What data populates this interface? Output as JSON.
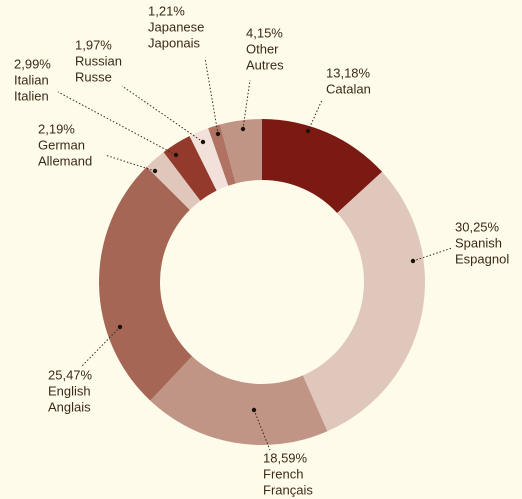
{
  "chart_data": {
    "type": "donut",
    "categories": [
      [
        "Catalan"
      ],
      [
        "Spanish",
        "Espagnol"
      ],
      [
        "French",
        "Français"
      ],
      [
        "English",
        "Anglais"
      ],
      [
        "German",
        "Allemand"
      ],
      [
        "Italian",
        "Italien"
      ],
      [
        "Russian",
        "Russe"
      ],
      [
        "Japanese",
        "Japonais"
      ],
      [
        "Other",
        "Autres"
      ]
    ],
    "values": [
      13.18,
      30.25,
      18.59,
      25.47,
      2.19,
      2.99,
      1.97,
      1.21,
      4.15
    ],
    "value_labels": [
      "13,18%",
      "30,25%",
      "18,59%",
      "25,47%",
      "2,19%",
      "2,99%",
      "1,97%",
      "1,21%",
      "4,15%"
    ],
    "colors": [
      "#7b1a12",
      "#e0c7bc",
      "#c09586",
      "#a66655",
      "#e0c7bc",
      "#943a2d",
      "#f2e1db",
      "#b07262",
      "#c09586"
    ]
  }
}
